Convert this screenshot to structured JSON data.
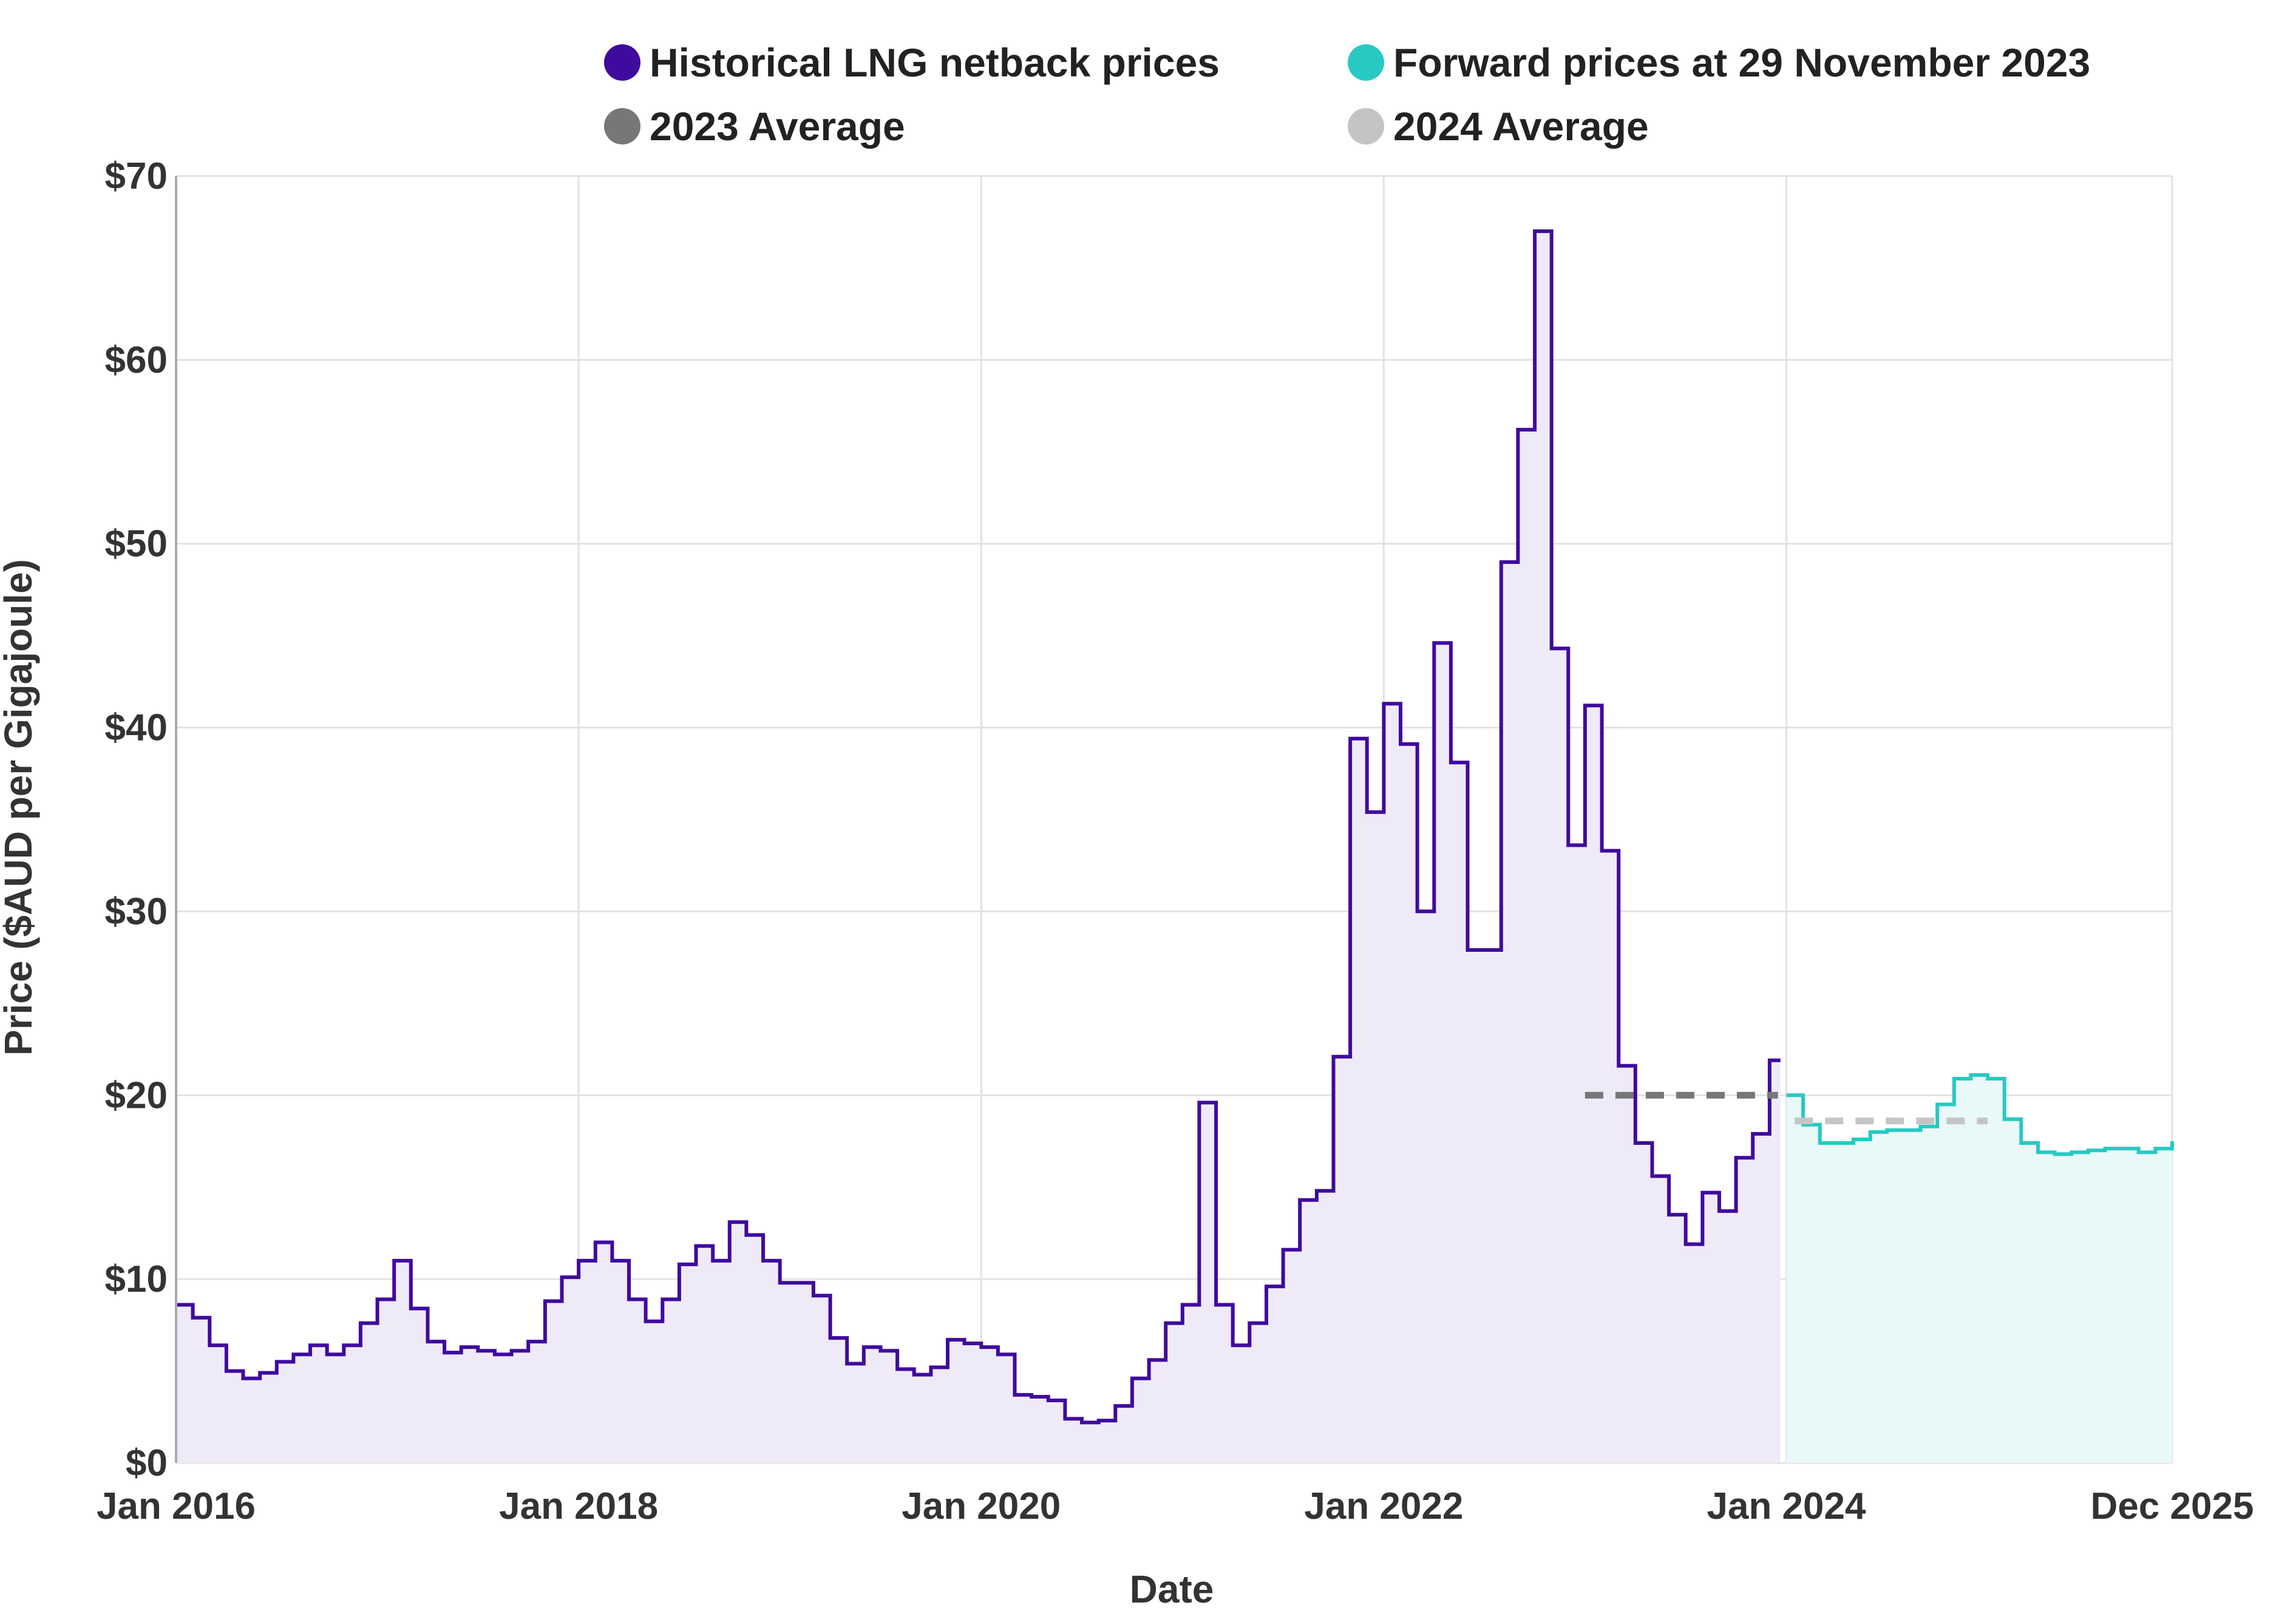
{
  "colors": {
    "historical": "#3f0a9e",
    "historical_fill": "#efeaf7",
    "forward": "#27c9c2",
    "forward_fill": "#e9f8f8",
    "avg2023": "#777777",
    "avg2024": "#c4c4c4",
    "grid": "#e2e2e2",
    "axis_text": "#333333"
  },
  "chart_data": {
    "type": "line",
    "step": true,
    "xlabel": "Date",
    "ylabel": "Price ($AUD per Gigajoule)",
    "ylim": [
      0,
      70
    ],
    "xlim": [
      "Jan 2016",
      "Dec 2025"
    ],
    "yticks": [
      0,
      10,
      20,
      30,
      40,
      50,
      60,
      70
    ],
    "ytick_labels": [
      "$0",
      "$10",
      "$20",
      "$30",
      "$40",
      "$50",
      "$60",
      "$70"
    ],
    "xticks": [
      {
        "label": "Jan 2016",
        "t": 0
      },
      {
        "label": "Jan 2018",
        "t": 24
      },
      {
        "label": "Jan 2020",
        "t": 48
      },
      {
        "label": "Jan 2022",
        "t": 72
      },
      {
        "label": "Jan 2024",
        "t": 96
      },
      {
        "label": "Dec 2025",
        "t": 119
      }
    ],
    "legend": [
      {
        "label": "Historical LNG netback prices",
        "color_key": "historical"
      },
      {
        "label": "Forward prices at 29 November 2023",
        "color_key": "forward"
      },
      {
        "label": "2023 Average",
        "color_key": "avg2023"
      },
      {
        "label": "2024 Average",
        "color_key": "avg2024"
      }
    ],
    "series": [
      {
        "name": "Historical LNG netback prices",
        "start": "Jan 2016",
        "interval": "month",
        "values": [
          8.6,
          7.9,
          6.4,
          5.0,
          4.6,
          4.9,
          5.5,
          5.9,
          6.4,
          5.9,
          6.4,
          7.6,
          8.9,
          11.0,
          8.4,
          6.6,
          6.0,
          6.3,
          6.1,
          5.9,
          6.1,
          6.6,
          8.8,
          10.1,
          11.0,
          12.0,
          11.0,
          8.9,
          7.7,
          8.9,
          10.8,
          11.8,
          11.0,
          13.1,
          12.4,
          11.0,
          9.8,
          9.8,
          9.1,
          6.8,
          5.4,
          6.3,
          6.1,
          5.1,
          4.8,
          5.2,
          6.7,
          6.5,
          6.3,
          5.9,
          3.7,
          3.6,
          3.4,
          2.4,
          2.2,
          2.3,
          3.1,
          4.6,
          5.6,
          7.6,
          8.6,
          19.6,
          8.6,
          6.4,
          7.6,
          9.6,
          11.6,
          14.3,
          14.8,
          22.1,
          39.4,
          35.4,
          41.3,
          39.1,
          30.0,
          44.6,
          38.1,
          27.9,
          27.9,
          49.0,
          56.2,
          67.0,
          44.3,
          33.6,
          41.2,
          33.3,
          21.6,
          17.4,
          15.6,
          13.5,
          11.9,
          14.7,
          13.7,
          16.6,
          17.9,
          21.9
        ]
      },
      {
        "name": "Forward prices at 29 November 2023",
        "start": "Jan 2024",
        "interval": "month",
        "values": [
          20.0,
          18.4,
          17.4,
          17.4,
          17.6,
          18.0,
          18.1,
          18.1,
          18.3,
          19.5,
          20.9,
          21.1,
          20.9,
          18.7,
          17.4,
          16.9,
          16.8,
          16.9,
          17.0,
          17.1,
          17.1,
          16.9,
          17.1,
          17.5
        ]
      },
      {
        "name": "2023 Average",
        "from": "Jan 2023",
        "to": "Dec 2023",
        "value": 20.0
      },
      {
        "name": "2024 Average",
        "from": "Jan 2024",
        "to": "Dec 2024",
        "value": 18.6
      }
    ]
  }
}
